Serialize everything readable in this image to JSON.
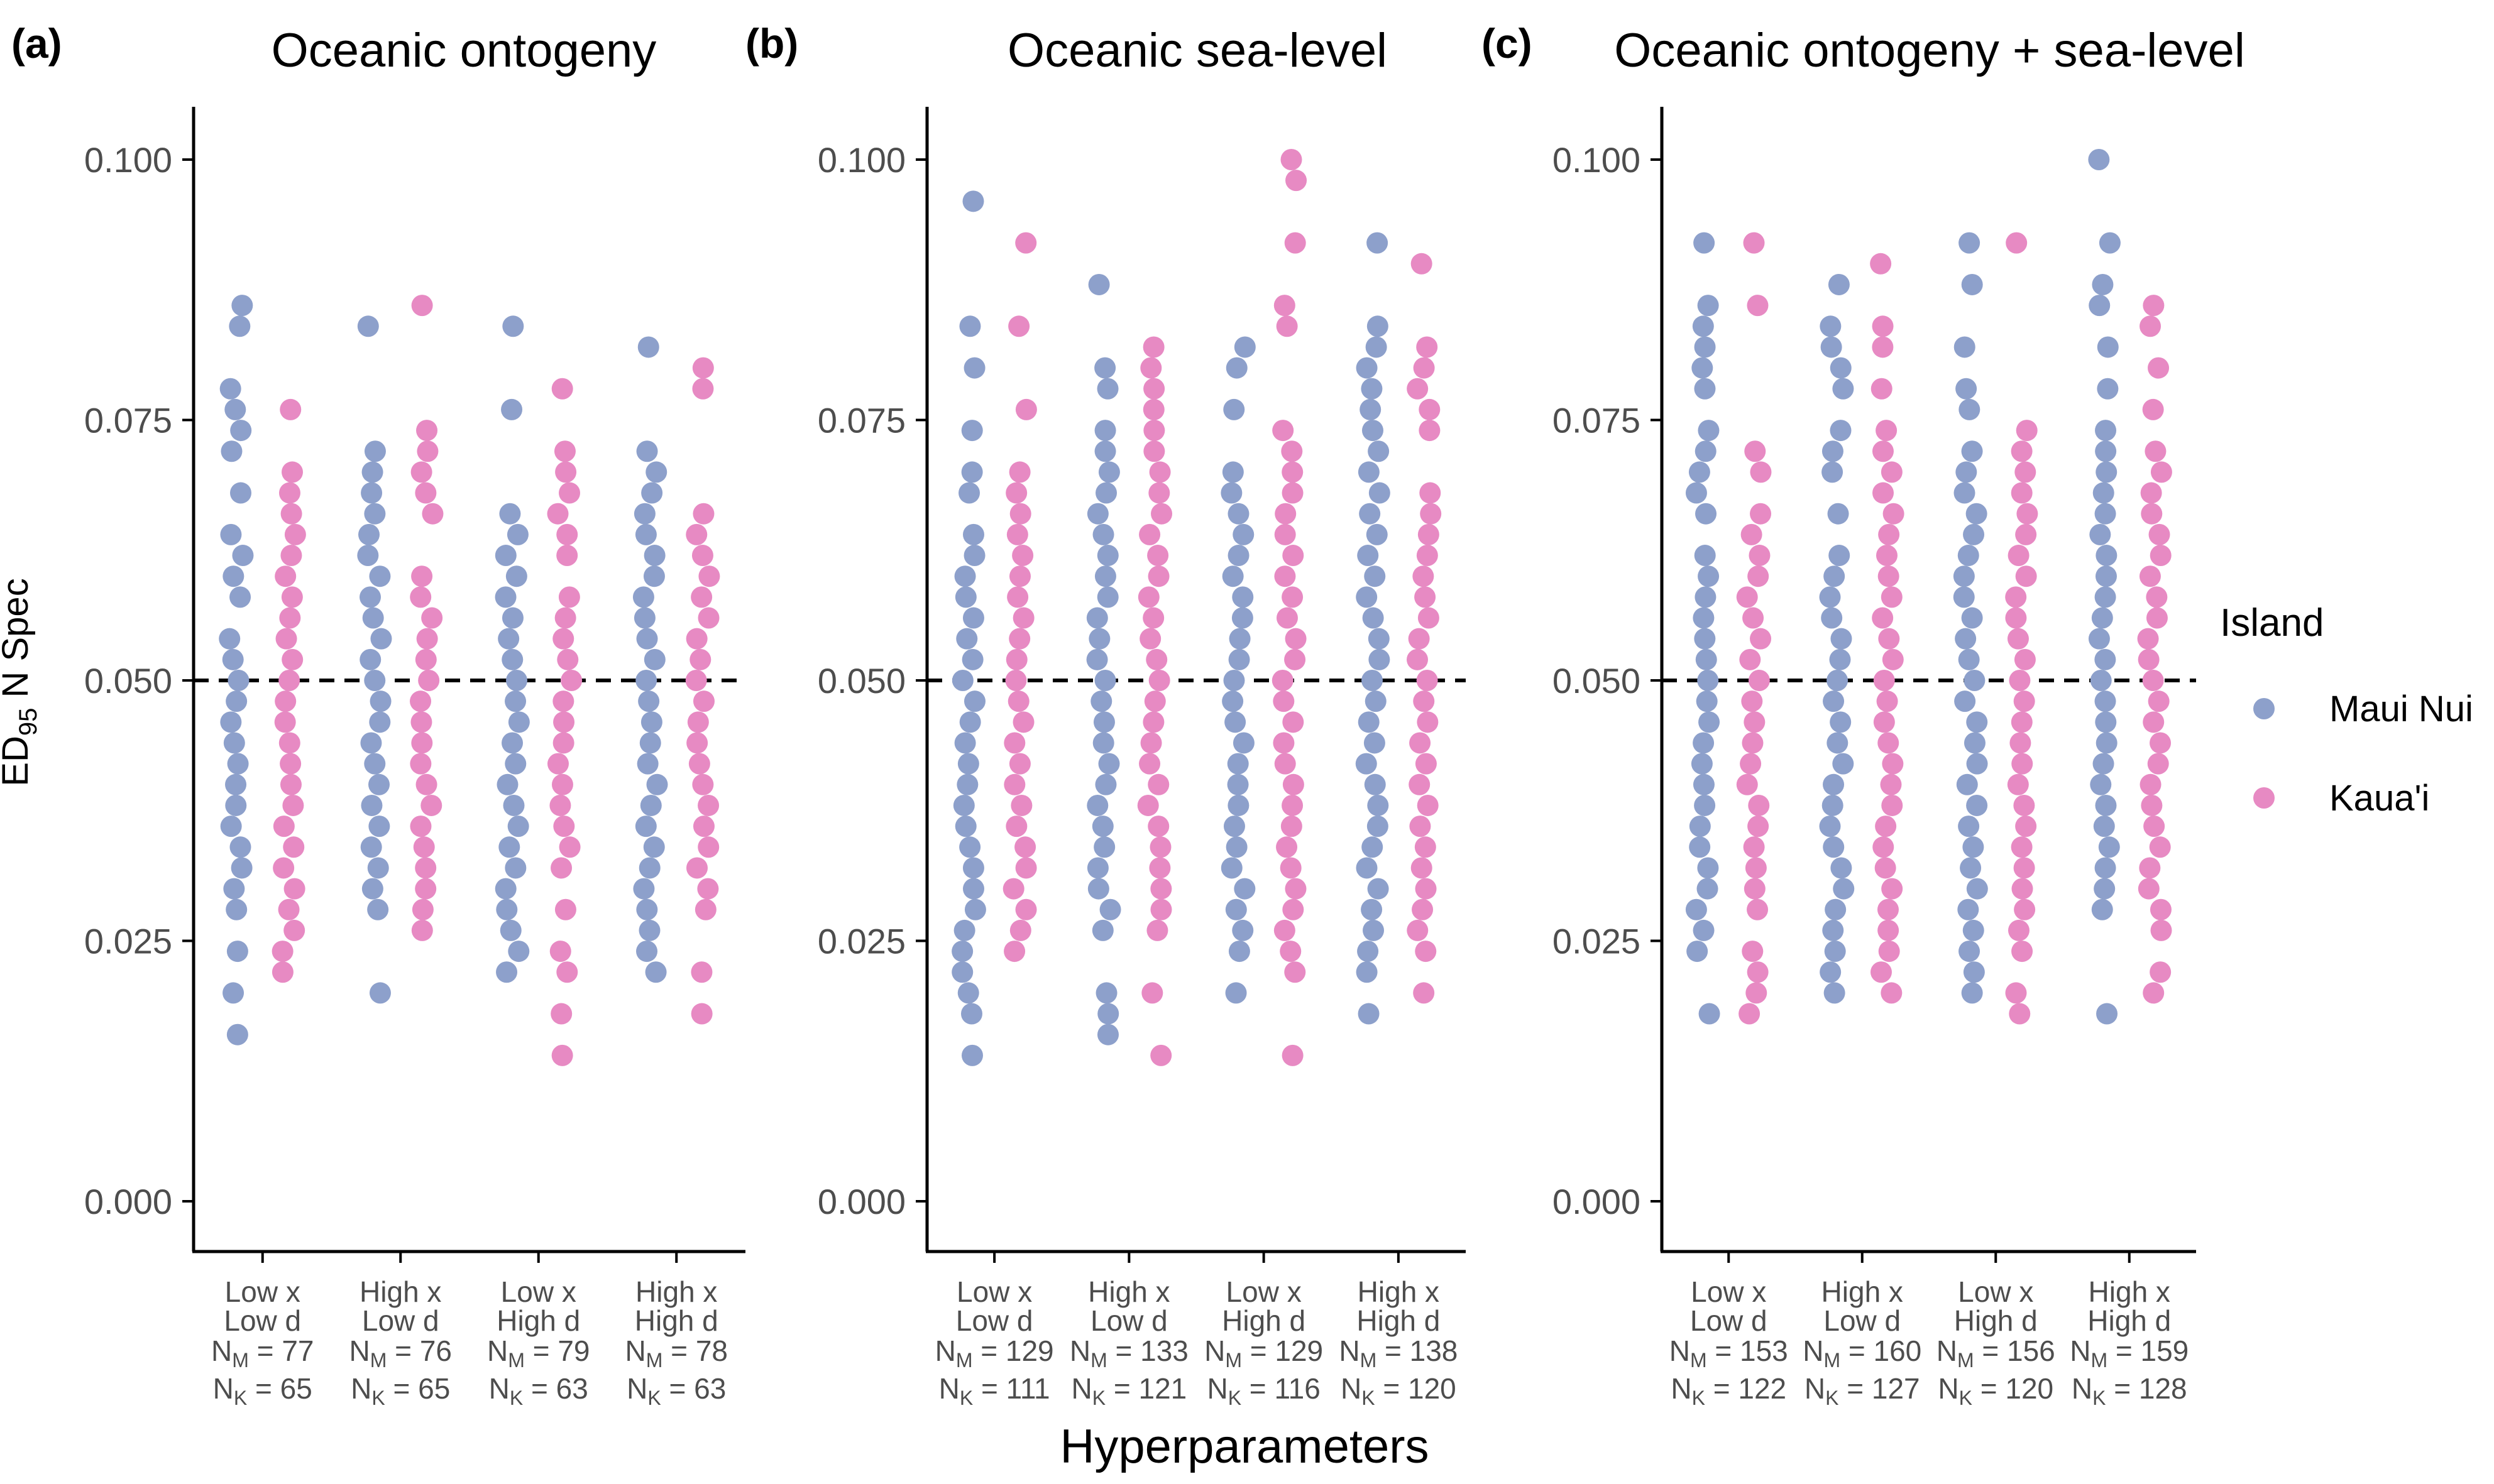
{
  "colors": {
    "maui": "#8DA0CB",
    "kauai": "#E78AC3",
    "axis": "#000000",
    "tick_text": "#4D4D4D"
  },
  "figure": {
    "ylabel_main": "ED",
    "ylabel_sub": "95",
    "ylabel_rest": " N Spec",
    "xlabel": "Hyperparameters"
  },
  "legend": {
    "title": "Island",
    "items": [
      {
        "label": "Maui Nui",
        "color": "#8DA0CB"
      },
      {
        "label": "Kaua'i",
        "color": "#E78AC3"
      }
    ]
  },
  "panels": [
    {
      "tag": "(a)",
      "title": "Oceanic ontogeny",
      "categories": [
        {
          "line1": "Low x",
          "line2": "Low d",
          "nm": "77",
          "nk": "65"
        },
        {
          "line1": "High x",
          "line2": "Low d",
          "nm": "76",
          "nk": "65"
        },
        {
          "line1": "Low x",
          "line2": "High d",
          "nm": "79",
          "nk": "63"
        },
        {
          "line1": "High x",
          "line2": "High d",
          "nm": "78",
          "nk": "63"
        }
      ]
    },
    {
      "tag": "(b)",
      "title": "Oceanic sea-level",
      "categories": [
        {
          "line1": "Low x",
          "line2": "Low d",
          "nm": "129",
          "nk": "111"
        },
        {
          "line1": "High x",
          "line2": "Low d",
          "nm": "133",
          "nk": "121"
        },
        {
          "line1": "Low x",
          "line2": "High d",
          "nm": "129",
          "nk": "116"
        },
        {
          "line1": "High x",
          "line2": "High d",
          "nm": "138",
          "nk": "120"
        }
      ]
    },
    {
      "tag": "(c)",
      "title": "Oceanic ontogeny + sea-level",
      "categories": [
        {
          "line1": "Low x",
          "line2": "Low d",
          "nm": "153",
          "nk": "122"
        },
        {
          "line1": "High x",
          "line2": "Low d",
          "nm": "160",
          "nk": "127"
        },
        {
          "line1": "Low x",
          "line2": "High d",
          "nm": "156",
          "nk": "120"
        },
        {
          "line1": "High x",
          "line2": "High d",
          "nm": "159",
          "nk": "128"
        }
      ]
    }
  ],
  "chart_data": {
    "type": "scatter",
    "ylabel": "ED95 N Spec",
    "xlabel": "Hyperparameters",
    "ylim": [
      0,
      0.105
    ],
    "yticks": [
      "0.000",
      "0.025",
      "0.050",
      "0.075",
      "0.100"
    ],
    "ytick_values": [
      0,
      0.025,
      0.05,
      0.075,
      0.1
    ],
    "reference_line": 0.05,
    "legend_position": "right",
    "grid": false,
    "series_names": [
      "Maui Nui",
      "Kaua'i"
    ],
    "panels": [
      {
        "title": "Oceanic ontogeny",
        "groups": [
          {
            "maui": [
              0.086,
              0.084,
              0.078,
              0.076,
              0.074,
              0.072,
              0.068,
              0.064,
              0.062,
              0.06,
              0.058,
              0.054,
              0.052,
              0.05,
              0.048,
              0.046,
              0.044,
              0.042,
              0.04,
              0.038,
              0.036,
              0.034,
              0.032,
              0.03,
              0.028,
              0.024,
              0.02,
              0.016
            ],
            "kauai": [
              0.076,
              0.07,
              0.068,
              0.066,
              0.064,
              0.062,
              0.06,
              0.058,
              0.056,
              0.054,
              0.052,
              0.05,
              0.048,
              0.046,
              0.044,
              0.042,
              0.04,
              0.038,
              0.036,
              0.034,
              0.032,
              0.03,
              0.028,
              0.026,
              0.024,
              0.022
            ]
          },
          {
            "maui": [
              0.084,
              0.072,
              0.07,
              0.068,
              0.066,
              0.064,
              0.062,
              0.06,
              0.058,
              0.056,
              0.054,
              0.052,
              0.05,
              0.048,
              0.046,
              0.044,
              0.042,
              0.04,
              0.038,
              0.036,
              0.034,
              0.032,
              0.03,
              0.028,
              0.02
            ],
            "kauai": [
              0.086,
              0.074,
              0.072,
              0.07,
              0.068,
              0.066,
              0.06,
              0.058,
              0.056,
              0.054,
              0.052,
              0.05,
              0.048,
              0.046,
              0.044,
              0.042,
              0.04,
              0.038,
              0.036,
              0.034,
              0.032,
              0.03,
              0.028,
              0.026
            ]
          },
          {
            "maui": [
              0.084,
              0.076,
              0.066,
              0.064,
              0.062,
              0.06,
              0.058,
              0.056,
              0.054,
              0.052,
              0.05,
              0.048,
              0.046,
              0.044,
              0.042,
              0.04,
              0.038,
              0.036,
              0.034,
              0.032,
              0.03,
              0.028,
              0.026,
              0.024,
              0.022
            ],
            "kauai": [
              0.078,
              0.072,
              0.07,
              0.068,
              0.066,
              0.064,
              0.062,
              0.058,
              0.056,
              0.054,
              0.052,
              0.05,
              0.048,
              0.046,
              0.044,
              0.042,
              0.04,
              0.038,
              0.036,
              0.034,
              0.032,
              0.028,
              0.024,
              0.022,
              0.018,
              0.014
            ]
          },
          {
            "maui": [
              0.082,
              0.072,
              0.07,
              0.068,
              0.066,
              0.064,
              0.062,
              0.06,
              0.058,
              0.056,
              0.054,
              0.052,
              0.05,
              0.048,
              0.046,
              0.044,
              0.042,
              0.04,
              0.038,
              0.036,
              0.034,
              0.032,
              0.03,
              0.028,
              0.026,
              0.024,
              0.022
            ],
            "kauai": [
              0.08,
              0.078,
              0.066,
              0.064,
              0.062,
              0.06,
              0.058,
              0.056,
              0.054,
              0.052,
              0.05,
              0.048,
              0.046,
              0.044,
              0.042,
              0.04,
              0.038,
              0.036,
              0.034,
              0.032,
              0.03,
              0.028,
              0.022,
              0.018
            ]
          }
        ]
      },
      {
        "title": "Oceanic sea-level",
        "groups": [
          {
            "maui": [
              0.096,
              0.084,
              0.08,
              0.074,
              0.07,
              0.068,
              0.064,
              0.062,
              0.06,
              0.058,
              0.056,
              0.054,
              0.052,
              0.05,
              0.048,
              0.046,
              0.044,
              0.042,
              0.04,
              0.038,
              0.036,
              0.034,
              0.032,
              0.03,
              0.028,
              0.026,
              0.024,
              0.022,
              0.02,
              0.018,
              0.014
            ],
            "kauai": [
              0.092,
              0.084,
              0.076,
              0.07,
              0.068,
              0.066,
              0.064,
              0.062,
              0.06,
              0.058,
              0.056,
              0.054,
              0.052,
              0.05,
              0.048,
              0.046,
              0.044,
              0.042,
              0.04,
              0.038,
              0.036,
              0.034,
              0.032,
              0.03,
              0.028,
              0.026,
              0.024
            ]
          },
          {
            "maui": [
              0.088,
              0.08,
              0.078,
              0.074,
              0.072,
              0.07,
              0.068,
              0.066,
              0.064,
              0.062,
              0.06,
              0.058,
              0.056,
              0.054,
              0.052,
              0.05,
              0.048,
              0.046,
              0.044,
              0.042,
              0.04,
              0.038,
              0.036,
              0.034,
              0.032,
              0.03,
              0.028,
              0.026,
              0.02,
              0.018,
              0.016
            ],
            "kauai": [
              0.082,
              0.08,
              0.078,
              0.076,
              0.074,
              0.072,
              0.07,
              0.068,
              0.066,
              0.064,
              0.062,
              0.06,
              0.058,
              0.056,
              0.054,
              0.052,
              0.05,
              0.048,
              0.046,
              0.044,
              0.042,
              0.04,
              0.038,
              0.036,
              0.034,
              0.032,
              0.03,
              0.028,
              0.026,
              0.02,
              0.014
            ]
          },
          {
            "maui": [
              0.082,
              0.08,
              0.076,
              0.07,
              0.068,
              0.066,
              0.064,
              0.062,
              0.06,
              0.058,
              0.056,
              0.054,
              0.052,
              0.05,
              0.048,
              0.046,
              0.044,
              0.042,
              0.04,
              0.038,
              0.036,
              0.034,
              0.032,
              0.03,
              0.028,
              0.026,
              0.024,
              0.02
            ],
            "kauai": [
              0.1,
              0.098,
              0.092,
              0.086,
              0.084,
              0.074,
              0.072,
              0.07,
              0.068,
              0.066,
              0.064,
              0.062,
              0.06,
              0.058,
              0.056,
              0.054,
              0.052,
              0.05,
              0.048,
              0.046,
              0.044,
              0.042,
              0.04,
              0.038,
              0.036,
              0.034,
              0.032,
              0.03,
              0.028,
              0.026,
              0.024,
              0.022,
              0.014
            ]
          },
          {
            "maui": [
              0.092,
              0.084,
              0.082,
              0.08,
              0.078,
              0.076,
              0.074,
              0.072,
              0.07,
              0.068,
              0.066,
              0.064,
              0.062,
              0.06,
              0.058,
              0.056,
              0.054,
              0.052,
              0.05,
              0.048,
              0.046,
              0.044,
              0.042,
              0.04,
              0.038,
              0.036,
              0.034,
              0.032,
              0.03,
              0.028,
              0.026,
              0.024,
              0.022,
              0.018
            ],
            "kauai": [
              0.09,
              0.082,
              0.08,
              0.078,
              0.076,
              0.074,
              0.068,
              0.066,
              0.064,
              0.062,
              0.06,
              0.058,
              0.056,
              0.054,
              0.052,
              0.05,
              0.048,
              0.046,
              0.044,
              0.042,
              0.04,
              0.038,
              0.036,
              0.034,
              0.032,
              0.03,
              0.028,
              0.026,
              0.024,
              0.02
            ]
          }
        ]
      },
      {
        "title": "Oceanic ontogeny + sea-level",
        "groups": [
          {
            "maui": [
              0.092,
              0.086,
              0.084,
              0.082,
              0.08,
              0.078,
              0.074,
              0.072,
              0.07,
              0.068,
              0.066,
              0.062,
              0.06,
              0.058,
              0.056,
              0.054,
              0.052,
              0.05,
              0.048,
              0.046,
              0.044,
              0.042,
              0.04,
              0.038,
              0.036,
              0.034,
              0.032,
              0.03,
              0.028,
              0.026,
              0.024,
              0.018
            ],
            "kauai": [
              0.092,
              0.086,
              0.072,
              0.07,
              0.066,
              0.064,
              0.062,
              0.06,
              0.058,
              0.056,
              0.054,
              0.052,
              0.05,
              0.048,
              0.046,
              0.044,
              0.042,
              0.04,
              0.038,
              0.036,
              0.034,
              0.032,
              0.03,
              0.028,
              0.024,
              0.022,
              0.02,
              0.018
            ]
          },
          {
            "maui": [
              0.088,
              0.084,
              0.082,
              0.08,
              0.078,
              0.074,
              0.072,
              0.07,
              0.066,
              0.062,
              0.06,
              0.058,
              0.056,
              0.054,
              0.052,
              0.05,
              0.048,
              0.046,
              0.044,
              0.042,
              0.04,
              0.038,
              0.036,
              0.034,
              0.032,
              0.03,
              0.028,
              0.026,
              0.024,
              0.022,
              0.02
            ],
            "kauai": [
              0.09,
              0.084,
              0.082,
              0.078,
              0.074,
              0.072,
              0.07,
              0.068,
              0.066,
              0.064,
              0.062,
              0.06,
              0.058,
              0.056,
              0.054,
              0.052,
              0.05,
              0.048,
              0.046,
              0.044,
              0.042,
              0.04,
              0.038,
              0.036,
              0.034,
              0.032,
              0.03,
              0.028,
              0.026,
              0.024,
              0.022,
              0.02
            ]
          },
          {
            "maui": [
              0.092,
              0.088,
              0.082,
              0.078,
              0.076,
              0.072,
              0.07,
              0.068,
              0.066,
              0.064,
              0.062,
              0.06,
              0.058,
              0.056,
              0.054,
              0.052,
              0.05,
              0.048,
              0.046,
              0.044,
              0.042,
              0.04,
              0.038,
              0.036,
              0.034,
              0.032,
              0.03,
              0.028,
              0.026,
              0.024,
              0.022,
              0.02
            ],
            "kauai": [
              0.092,
              0.074,
              0.072,
              0.07,
              0.068,
              0.066,
              0.064,
              0.062,
              0.06,
              0.058,
              0.056,
              0.054,
              0.052,
              0.05,
              0.048,
              0.046,
              0.044,
              0.042,
              0.04,
              0.038,
              0.036,
              0.034,
              0.032,
              0.03,
              0.028,
              0.026,
              0.024,
              0.02,
              0.018
            ]
          },
          {
            "maui": [
              0.1,
              0.092,
              0.088,
              0.086,
              0.082,
              0.078,
              0.074,
              0.072,
              0.07,
              0.068,
              0.066,
              0.064,
              0.062,
              0.06,
              0.058,
              0.056,
              0.054,
              0.052,
              0.05,
              0.048,
              0.046,
              0.044,
              0.042,
              0.04,
              0.038,
              0.036,
              0.034,
              0.032,
              0.03,
              0.028,
              0.018
            ],
            "kauai": [
              0.086,
              0.084,
              0.08,
              0.076,
              0.072,
              0.07,
              0.068,
              0.066,
              0.064,
              0.062,
              0.06,
              0.058,
              0.056,
              0.054,
              0.052,
              0.05,
              0.048,
              0.046,
              0.044,
              0.042,
              0.04,
              0.038,
              0.036,
              0.034,
              0.032,
              0.03,
              0.028,
              0.026,
              0.022,
              0.02
            ]
          }
        ]
      }
    ]
  }
}
